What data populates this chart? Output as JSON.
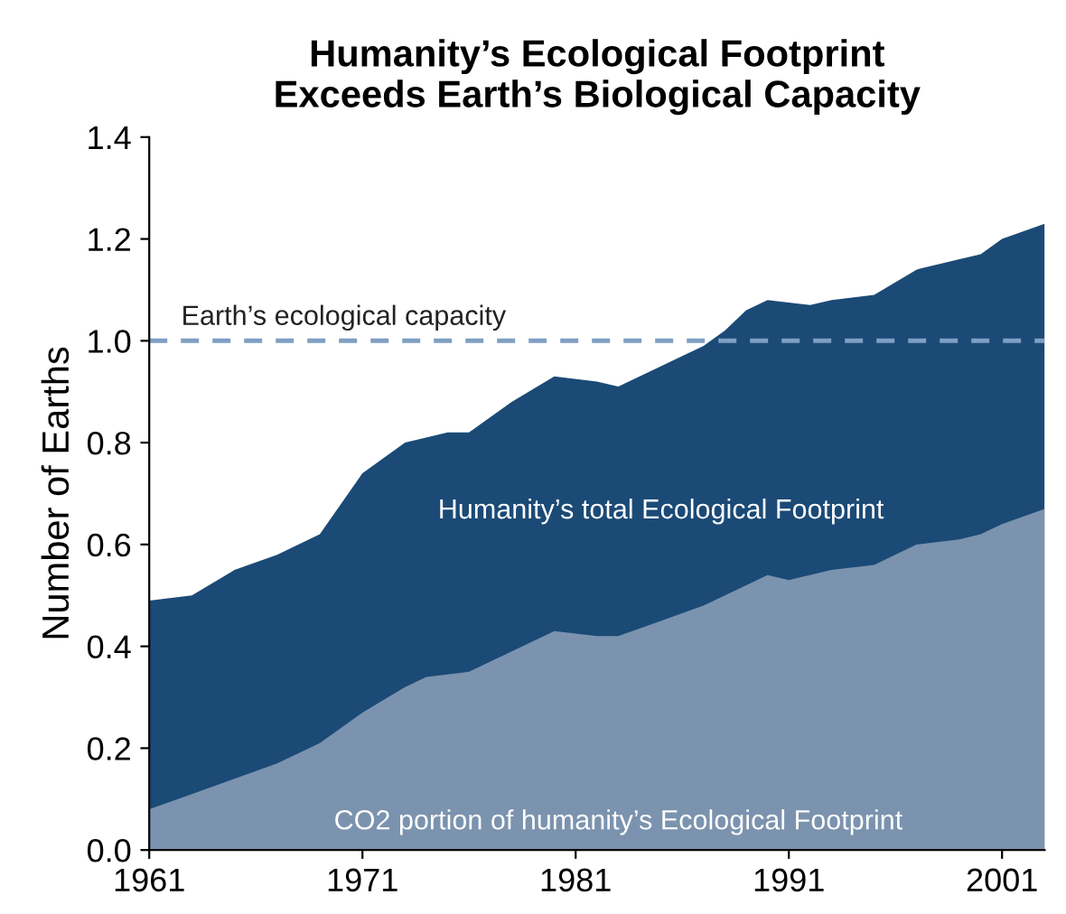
{
  "chart_data": {
    "type": "area",
    "title": "Humanity’s Ecological Footprint\nExceeds Earth’s Biological Capacity",
    "ylabel": "Number of Earths",
    "series": [
      {
        "name": "Humanity’s total Ecological Footprint",
        "color": "#1b4a76",
        "x": [
          1961,
          1963,
          1965,
          1967,
          1969,
          1971,
          1973,
          1975,
          1976,
          1978,
          1980,
          1982,
          1983,
          1985,
          1987,
          1988,
          1989,
          1990,
          1992,
          1993,
          1995,
          1997,
          1999,
          2000,
          2001,
          2003
        ],
        "values": [
          0.49,
          0.5,
          0.55,
          0.58,
          0.62,
          0.74,
          0.8,
          0.82,
          0.82,
          0.88,
          0.93,
          0.92,
          0.91,
          0.95,
          0.99,
          1.02,
          1.06,
          1.08,
          1.07,
          1.08,
          1.09,
          1.14,
          1.16,
          1.17,
          1.2,
          1.23
        ]
      },
      {
        "name": "CO2 portion of humanity’s Ecological Footprint",
        "color": "#7b93ae",
        "x": [
          1961,
          1963,
          1965,
          1967,
          1969,
          1971,
          1973,
          1974,
          1976,
          1978,
          1980,
          1982,
          1983,
          1985,
          1987,
          1989,
          1990,
          1991,
          1993,
          1995,
          1997,
          1999,
          2000,
          2001,
          2003
        ],
        "values": [
          0.08,
          0.11,
          0.14,
          0.17,
          0.21,
          0.27,
          0.32,
          0.34,
          0.35,
          0.39,
          0.43,
          0.42,
          0.42,
          0.45,
          0.48,
          0.52,
          0.54,
          0.53,
          0.55,
          0.56,
          0.6,
          0.61,
          0.62,
          0.64,
          0.67
        ]
      }
    ],
    "ref_lines": [
      {
        "axis": "y",
        "value": 1.0,
        "label": "Earth’s ecological capacity",
        "color": "#7f9fc4",
        "line_style": "dashed"
      }
    ],
    "xlim": [
      1961,
      2003
    ],
    "xticks": [
      1961,
      1971,
      1981,
      1991,
      2001
    ],
    "ylim": [
      0,
      1.4
    ],
    "yticks": [
      {
        "value": 0,
        "label": "0.0"
      },
      {
        "value": 0.2,
        "label": "0.2"
      },
      {
        "value": 0.4,
        "label": "0.4"
      },
      {
        "value": 0.6,
        "label": "0.6"
      },
      {
        "value": 0.8,
        "label": "0.8"
      },
      {
        "value": 1.0,
        "label": "1.0"
      },
      {
        "value": 1.2,
        "label": "1.2"
      },
      {
        "value": 1.4,
        "label": "1.4"
      }
    ],
    "grid": false,
    "legend": false
  }
}
